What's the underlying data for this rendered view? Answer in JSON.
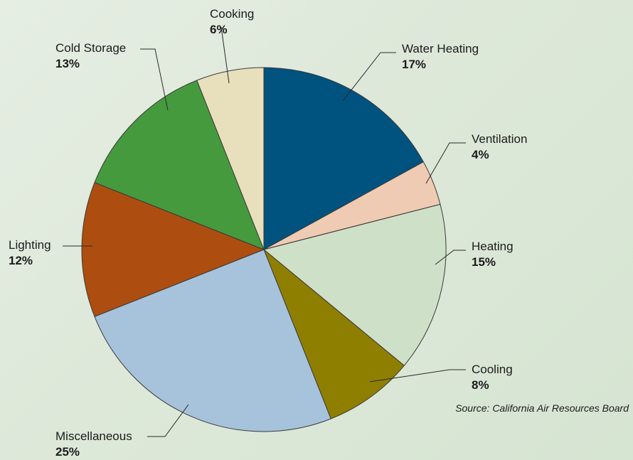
{
  "chart_data": {
    "type": "pie",
    "source_note": "Source: California Air Resources Board",
    "slices": [
      {
        "label": "Water Heating",
        "value": 17,
        "value_label": "17%",
        "color": "#00527f"
      },
      {
        "label": "Ventilation",
        "value": 4,
        "value_label": "4%",
        "color": "#eecbb2"
      },
      {
        "label": "Heating",
        "value": 15,
        "value_label": "15%",
        "color": "#cfe0c8"
      },
      {
        "label": "Cooling",
        "value": 8,
        "value_label": "8%",
        "color": "#8f7f00"
      },
      {
        "label": "Miscellaneous",
        "value": 25,
        "value_label": "25%",
        "color": "#a7c3dc"
      },
      {
        "label": "Lighting",
        "value": 12,
        "value_label": "12%",
        "color": "#ad4e10"
      },
      {
        "label": "Cold Storage",
        "value": 13,
        "value_label": "13%",
        "color": "#469a3e"
      },
      {
        "label": "Cooking",
        "value": 6,
        "value_label": "6%",
        "color": "#e8dfbc"
      }
    ]
  }
}
